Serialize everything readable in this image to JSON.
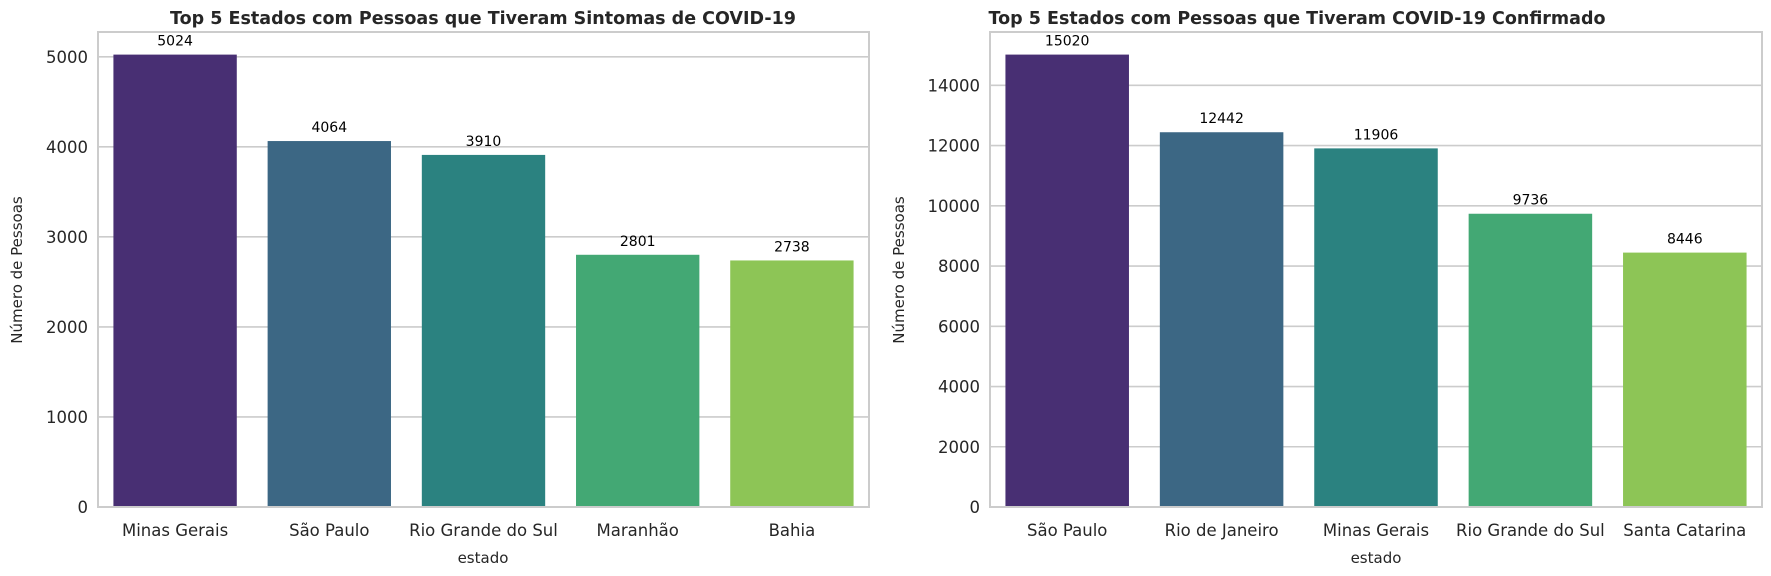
{
  "chart_data": [
    {
      "type": "bar",
      "title": "Top 5 Estados com Pessoas que Tiveram Sintomas de COVID-19",
      "xlabel": "estado",
      "ylabel": "Número de Pessoas",
      "categories": [
        "Minas Gerais",
        "São Paulo",
        "Rio Grande do Sul",
        "Maranhão",
        "Bahia"
      ],
      "values": [
        5024,
        4064,
        3910,
        2801,
        2738
      ],
      "data_labels": [
        "5024",
        "4064",
        "3910",
        "2801",
        "2738"
      ],
      "ylim": [
        0,
        5275
      ],
      "yticks": [
        0,
        1000,
        2000,
        3000,
        4000,
        5000
      ],
      "ytick_labels": [
        "0",
        "1000",
        "2000",
        "3000",
        "4000",
        "5000"
      ],
      "colors": [
        "#482f73",
        "#3c6784",
        "#2b8280",
        "#43a874",
        "#8dc556"
      ],
      "grid": "y"
    },
    {
      "type": "bar",
      "title": "Top 5 Estados com Pessoas que Tiveram COVID-19 Confirmado",
      "xlabel": "estado",
      "ylabel": "Número de Pessoas",
      "categories": [
        "São Paulo",
        "Rio de Janeiro",
        "Minas Gerais",
        "Rio Grande do Sul",
        "Santa Catarina"
      ],
      "values": [
        15020,
        12442,
        11906,
        9736,
        8446
      ],
      "data_labels": [
        "15020",
        "12442",
        "11906",
        "9736",
        "8446"
      ],
      "ylim": [
        0,
        15770
      ],
      "yticks": [
        0,
        2000,
        4000,
        6000,
        8000,
        10000,
        12000,
        14000
      ],
      "ytick_labels": [
        "0",
        "2000",
        "4000",
        "6000",
        "8000",
        "10000",
        "12000",
        "14000"
      ],
      "colors": [
        "#482f73",
        "#3c6784",
        "#2b8280",
        "#43a874",
        "#8dc556"
      ],
      "grid": "y"
    }
  ]
}
